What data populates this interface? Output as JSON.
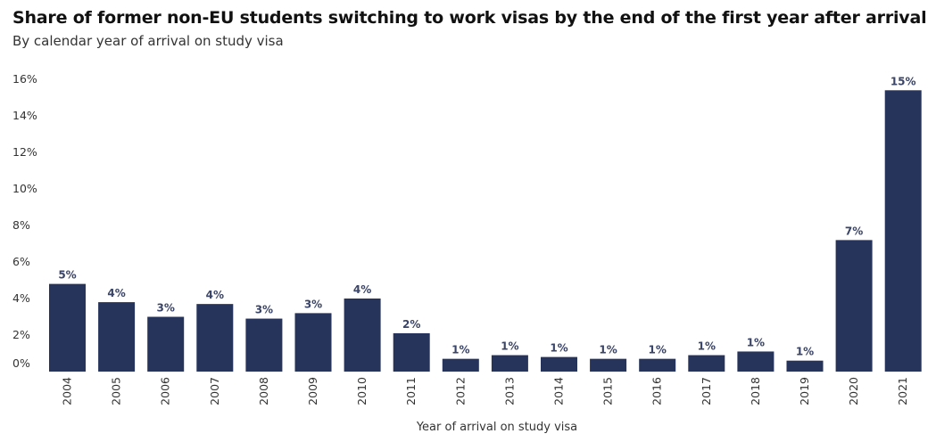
{
  "chart_data": {
    "type": "bar",
    "title": "Share of former non-EU students switching to work visas by the end of the first year after arrival",
    "subtitle": "By calendar year of arrival on study visa",
    "xlabel": "Year of arrival on study visa",
    "ylabel": "",
    "ylim": [
      0,
      16
    ],
    "yticks": [
      "0%",
      "2%",
      "4%",
      "6%",
      "8%",
      "10%",
      "12%",
      "14%",
      "16%"
    ],
    "categories": [
      "2004",
      "2005",
      "2006",
      "2007",
      "2008",
      "2009",
      "2010",
      "2011",
      "2012",
      "2013",
      "2014",
      "2015",
      "2016",
      "2017",
      "2018",
      "2019",
      "2020",
      "2021"
    ],
    "values": [
      4.8,
      3.8,
      3.0,
      3.7,
      2.9,
      3.2,
      4.0,
      2.1,
      0.7,
      0.9,
      0.8,
      0.7,
      0.7,
      0.9,
      1.1,
      0.6,
      7.2,
      15.4
    ],
    "data_labels": [
      "5%",
      "4%",
      "3%",
      "4%",
      "3%",
      "3%",
      "4%",
      "2%",
      "1%",
      "1%",
      "1%",
      "1%",
      "1%",
      "1%",
      "1%",
      "1%",
      "7%",
      "15%"
    ],
    "bar_color": "#26335a",
    "grid": false,
    "legend": "none"
  }
}
